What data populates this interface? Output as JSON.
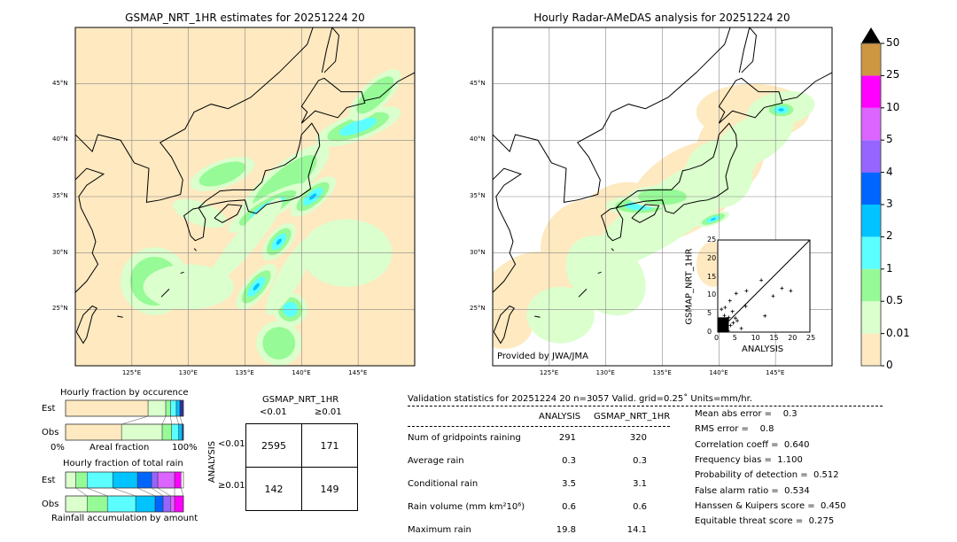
{
  "maps": [
    {
      "title": "GSMAP_NRT_1HR estimates for 20251224 20",
      "footer": ""
    },
    {
      "title": "Hourly Radar-AMeDAS analysis for 20251224 20",
      "footer": "Provided by JWA/JMA"
    }
  ],
  "lon_ticks": [
    "125°E",
    "130°E",
    "135°E",
    "140°E",
    "145°E"
  ],
  "lat_ticks": [
    "45°N",
    "40°N",
    "35°N",
    "30°N",
    "25°N"
  ],
  "colorbar": {
    "labels": [
      "0",
      "0.01",
      "0.5",
      "1",
      "2",
      "3",
      "4",
      "5",
      "10",
      "25",
      "50"
    ],
    "colors": [
      "#fee9c0",
      "#dbffcd",
      "#96fa96",
      "#5cffff",
      "#00c3ff",
      "#0064ff",
      "#9664ff",
      "#dc64ff",
      "#ff00ff",
      "#cd9641"
    ],
    "extend_color": "#000000"
  },
  "chart_data": [
    {
      "type": "scatter",
      "title": "",
      "xlabel": "ANALYSIS",
      "ylabel": "GSMAP_NRT_1HR",
      "xlim": [
        0,
        25
      ],
      "ylim": [
        0,
        25
      ],
      "ticks": [
        "0",
        "5",
        "10",
        "15",
        "20",
        "25"
      ],
      "points": [
        [
          11.8,
          14.1
        ],
        [
          5,
          10.5
        ],
        [
          7.8,
          11.2
        ],
        [
          15,
          9.8
        ],
        [
          17.4,
          11.9
        ],
        [
          19.8,
          11.2
        ],
        [
          12.8,
          4.4
        ],
        [
          3.3,
          8.5
        ],
        [
          7.6,
          7
        ],
        [
          6.4,
          1
        ],
        [
          4.8,
          3.8
        ],
        [
          5.3,
          3.1
        ],
        [
          2,
          6.7
        ],
        [
          1,
          6.2
        ],
        [
          4,
          5.6
        ],
        [
          3,
          4
        ],
        [
          2.5,
          3
        ],
        [
          1.5,
          2.5
        ],
        [
          0.8,
          1.5
        ],
        [
          2.2,
          1.2
        ],
        [
          3.5,
          1.8
        ],
        [
          1.2,
          0.8
        ],
        [
          0.5,
          0.5
        ],
        [
          4.2,
          2.5
        ],
        [
          2.8,
          0.4
        ],
        [
          1.8,
          4.5
        ]
      ],
      "reference_line": "y=x"
    },
    {
      "type": "bar",
      "title": "Hourly fraction by occurence",
      "xlabel": "Areal fraction",
      "rows": [
        "Est",
        "Obs"
      ],
      "axis_labels": [
        "0%",
        "100%"
      ],
      "series": [
        {
          "values": [
            70,
            15,
            4,
            5,
            3,
            3
          ]
        },
        {
          "values": [
            47.5,
            34.5,
            8,
            6,
            3,
            1
          ]
        }
      ]
    },
    {
      "type": "bar",
      "title": "Hourly fraction of total rain",
      "xlabel": "Rainfall accumulation by amount",
      "rows": [
        "Est",
        "Obs"
      ],
      "series": [
        {
          "values": [
            8.75,
            9.5,
            21.75,
            21,
            12,
            5.25,
            14.25,
            5.5,
            0
          ]
        },
        {
          "values": [
            18.25,
            17.25,
            24,
            16.5,
            6.75,
            6.25,
            3.5,
            7.5,
            0
          ]
        }
      ]
    }
  ],
  "contingency": {
    "title": "GSMAP_NRT_1HR",
    "col_labels": [
      "<0.01",
      "≥0.01"
    ],
    "row_title": "ANALYSIS",
    "row_labels": [
      "<0.01",
      "≥0.01"
    ],
    "cells": [
      [
        "2595",
        "171"
      ],
      [
        "142",
        "149"
      ]
    ]
  },
  "stats": {
    "header": "Validation statistics for 20251224 20  n=3057 Valid. grid=0.25˚ Units=mm/hr.",
    "col_headers": [
      "ANALYSIS",
      "GSMAP_NRT_1HR"
    ],
    "rows": [
      {
        "label": "Num of gridpoints raining",
        "a": "291",
        "g": "320"
      },
      {
        "label": "Average rain",
        "a": "0.3",
        "g": "0.3"
      },
      {
        "label": "Conditional rain",
        "a": "3.5",
        "g": "3.1"
      },
      {
        "label": "Rain volume (mm km²10⁶)",
        "a": "0.6",
        "g": "0.6"
      },
      {
        "label": "Maximum rain",
        "a": "19.8",
        "g": "14.1"
      }
    ],
    "scores": [
      "Mean abs error =    0.3",
      "RMS error =    0.8",
      "Correlation coeff =  0.640",
      "Frequency bias =  1.100",
      "Probability of detection =  0.512",
      "False alarm ratio =  0.534",
      "Hanssen & Kuipers score =  0.450",
      "Equitable threat score =  0.275"
    ]
  }
}
